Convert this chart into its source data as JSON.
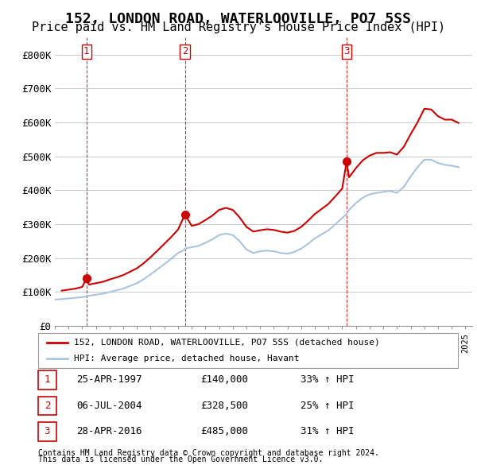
{
  "title": "152, LONDON ROAD, WATERLOOVILLE, PO7 5SS",
  "subtitle": "Price paid vs. HM Land Registry's House Price Index (HPI)",
  "title_fontsize": 13,
  "subtitle_fontsize": 11,
  "ylabel_ticks": [
    "£0",
    "£100K",
    "£200K",
    "£300K",
    "£400K",
    "£500K",
    "£600K",
    "£700K",
    "£800K"
  ],
  "ytick_values": [
    0,
    100000,
    200000,
    300000,
    400000,
    500000,
    600000,
    700000,
    800000
  ],
  "ylim": [
    0,
    850000
  ],
  "xlim_start": 1995.0,
  "xlim_end": 2025.5,
  "background_color": "#ffffff",
  "grid_color": "#cccccc",
  "hpi_line_color": "#aac4e0",
  "price_line_color": "#cc0000",
  "dashed_line_color": "#cc0000",
  "sale_marker_color": "#cc0000",
  "legend_label_red": "152, LONDON ROAD, WATERLOOVILLE, PO7 5SS (detached house)",
  "legend_label_blue": "HPI: Average price, detached house, Havant",
  "transactions": [
    {
      "num": 1,
      "date": "25-APR-1997",
      "price": 140000,
      "year": 1997.31,
      "label": "1",
      "hpi_pct": "33% ↑ HPI"
    },
    {
      "num": 2,
      "date": "06-JUL-2004",
      "price": 328500,
      "year": 2004.51,
      "label": "2",
      "hpi_pct": "25% ↑ HPI"
    },
    {
      "num": 3,
      "date": "28-APR-2016",
      "price": 485000,
      "year": 2016.32,
      "label": "3",
      "hpi_pct": "31% ↑ HPI"
    }
  ],
  "footer1": "Contains HM Land Registry data © Crown copyright and database right 2024.",
  "footer2": "This data is licensed under the Open Government Licence v3.0.",
  "hpi_data_x": [
    1995.0,
    1995.5,
    1996.0,
    1996.5,
    1997.0,
    1997.31,
    1997.5,
    1998.0,
    1998.5,
    1999.0,
    1999.5,
    2000.0,
    2000.5,
    2001.0,
    2001.5,
    2002.0,
    2002.5,
    2003.0,
    2003.5,
    2004.0,
    2004.51,
    2004.5,
    2005.0,
    2005.5,
    2006.0,
    2006.5,
    2007.0,
    2007.5,
    2008.0,
    2008.5,
    2009.0,
    2009.5,
    2010.0,
    2010.5,
    2011.0,
    2011.5,
    2012.0,
    2012.5,
    2013.0,
    2013.5,
    2014.0,
    2014.5,
    2015.0,
    2015.5,
    2016.0,
    2016.32,
    2016.5,
    2017.0,
    2017.5,
    2018.0,
    2018.5,
    2019.0,
    2019.5,
    2020.0,
    2020.5,
    2021.0,
    2021.5,
    2022.0,
    2022.5,
    2023.0,
    2023.5,
    2024.0,
    2024.5
  ],
  "hpi_data_y": [
    78000,
    79000,
    81000,
    83000,
    85000,
    87000,
    89000,
    92000,
    95000,
    100000,
    105000,
    110000,
    118000,
    126000,
    138000,
    152000,
    167000,
    182000,
    198000,
    215000,
    225000,
    228000,
    232000,
    236000,
    245000,
    255000,
    268000,
    272000,
    268000,
    250000,
    225000,
    215000,
    220000,
    222000,
    220000,
    215000,
    213000,
    218000,
    228000,
    242000,
    258000,
    270000,
    282000,
    300000,
    318000,
    330000,
    342000,
    362000,
    378000,
    388000,
    392000,
    395000,
    398000,
    392000,
    410000,
    440000,
    468000,
    490000,
    490000,
    480000,
    475000,
    472000,
    468000
  ],
  "price_line_x": [
    1995.5,
    1996.0,
    1996.5,
    1997.0,
    1997.31,
    1997.5,
    1998.0,
    1998.5,
    1999.0,
    1999.5,
    2000.0,
    2000.5,
    2001.0,
    2001.5,
    2002.0,
    2002.5,
    2003.0,
    2003.5,
    2004.0,
    2004.51,
    2005.0,
    2005.5,
    2006.0,
    2006.5,
    2007.0,
    2007.5,
    2008.0,
    2008.5,
    2009.0,
    2009.5,
    2010.0,
    2010.5,
    2011.0,
    2011.5,
    2012.0,
    2012.5,
    2013.0,
    2013.5,
    2014.0,
    2014.5,
    2015.0,
    2015.5,
    2016.0,
    2016.32,
    2016.5,
    2017.0,
    2017.5,
    2018.0,
    2018.5,
    2019.0,
    2019.5,
    2020.0,
    2020.5,
    2021.0,
    2021.5,
    2022.0,
    2022.5,
    2023.0,
    2023.5,
    2024.0,
    2024.5
  ],
  "price_line_y": [
    104000,
    107000,
    110000,
    115000,
    140000,
    122000,
    126000,
    130000,
    137000,
    143000,
    150000,
    160000,
    170000,
    185000,
    203000,
    222000,
    242000,
    262000,
    284000,
    328500,
    295000,
    300000,
    312000,
    325000,
    342000,
    348000,
    342000,
    320000,
    292000,
    278000,
    282000,
    285000,
    283000,
    278000,
    275000,
    280000,
    292000,
    310000,
    330000,
    345000,
    360000,
    382000,
    405000,
    485000,
    438000,
    465000,
    488000,
    502000,
    510000,
    510000,
    512000,
    505000,
    528000,
    565000,
    600000,
    640000,
    638000,
    618000,
    608000,
    608000,
    598000
  ]
}
